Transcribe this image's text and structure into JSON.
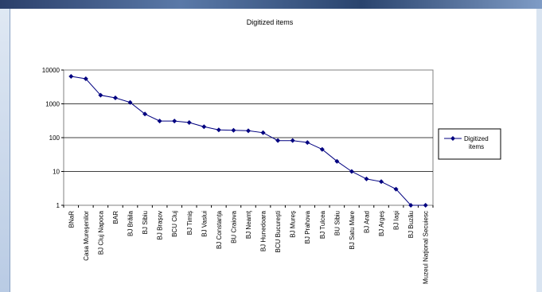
{
  "chart_data": {
    "type": "line",
    "title": "Digitized items",
    "xlabel": "",
    "ylabel": "",
    "y_scale": "log",
    "ylim": [
      1,
      10000
    ],
    "y_ticks": [
      "1",
      "10",
      "100",
      "1000",
      "10000"
    ],
    "grid": true,
    "legend": "right",
    "categories": [
      "BNaR",
      "Casa Mureşenilor",
      "BJ Cluj Napoca",
      "BAR",
      "BJ Brăila",
      "BJ Sibiu",
      "BJ Braşov",
      "BCU Cluj",
      "BJ Timiş",
      "BJ Vaslui",
      "BJ Constanţa",
      "BU Craiova",
      "BJ Neamţ",
      "BJ Hunedoara",
      "BCU Bucureşti",
      "BJ Mureş",
      "BJ Prahova",
      "BJ Tulcea",
      "BU Sibiu",
      "BJ Satu Mare",
      "BJ Arad",
      "BJ Argeş",
      "BJ Iaşi",
      "BJ Buzău",
      "Muzeul Naţional Secuiesc"
    ],
    "series": [
      {
        "name": "Digitized items",
        "color": "#000080",
        "values": [
          6500,
          5500,
          1800,
          1500,
          1100,
          500,
          310,
          310,
          280,
          210,
          170,
          165,
          160,
          140,
          82,
          82,
          72,
          45,
          20,
          10,
          6,
          5,
          3,
          1,
          1
        ]
      }
    ]
  }
}
